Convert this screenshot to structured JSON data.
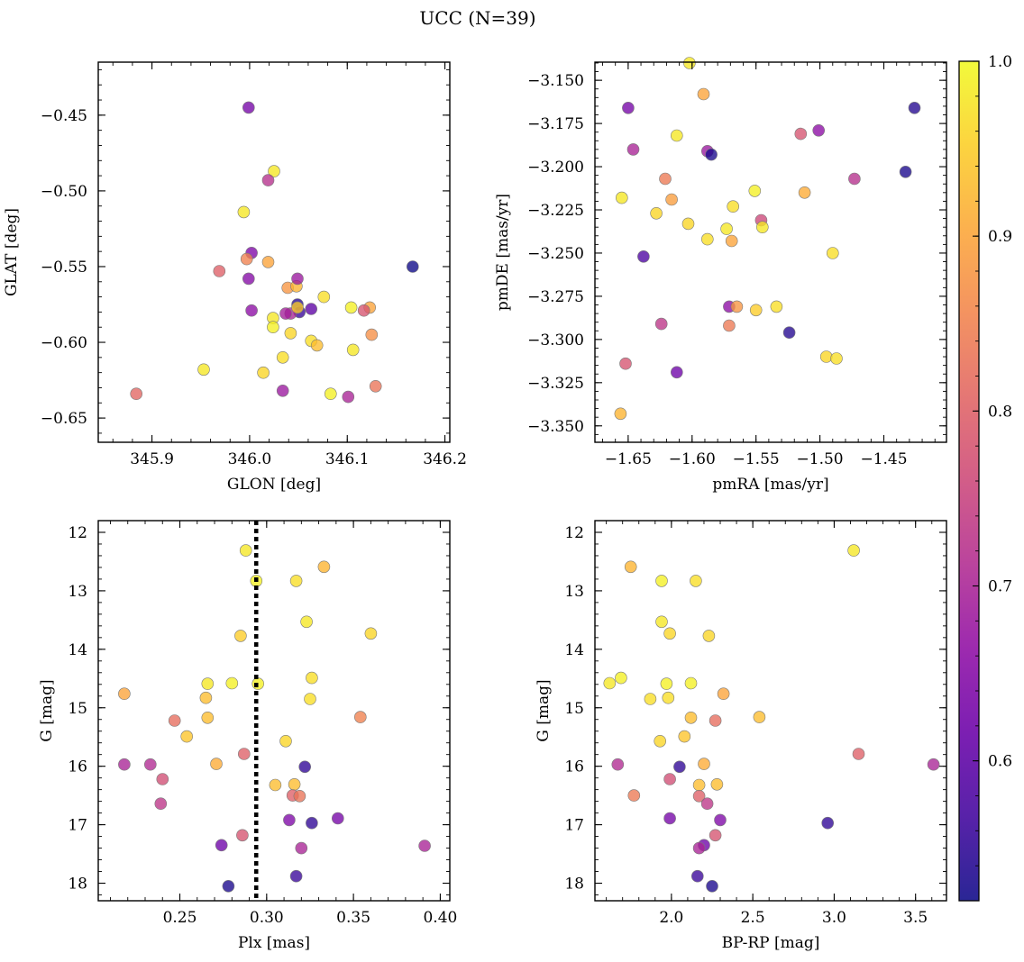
{
  "figure": {
    "title": "UCC (N=39)"
  },
  "colors": {
    "colormap": [
      "#0d0887",
      "#41049d",
      "#6a00a8",
      "#8f0da4",
      "#b12a90",
      "#cc4778",
      "#e16462",
      "#f2844b",
      "#fca636",
      "#fcce25",
      "#f0f921"
    ],
    "marker_alpha": 0.78,
    "marker_edge": "#7a7a7a",
    "vline": "#000000"
  },
  "chart_data": [
    {
      "id": "glon-glat",
      "type": "scatter",
      "xlabel": "GLON [deg]",
      "ylabel": "GLAT [deg]",
      "xlim": [
        345.845,
        346.205
      ],
      "ylim": [
        -0.666,
        -0.415
      ],
      "y_inverted": false,
      "xticks": [
        345.9,
        346.0,
        346.1,
        346.2
      ],
      "xtick_labels": [
        "345.9",
        "346.0",
        "346.1",
        "346.2"
      ],
      "yticks": [
        -0.45,
        -0.5,
        -0.55,
        -0.6,
        -0.65
      ],
      "ytick_labels": [
        "−0.45",
        "−0.50",
        "−0.55",
        "−0.60",
        "−0.65"
      ],
      "x": [
        345.999,
        346.025,
        346.019,
        345.994,
        346.002,
        346.167,
        345.969,
        345.997,
        346.019,
        345.999,
        346.039,
        346.048,
        346.049,
        346.002,
        346.049,
        346.051,
        346.063,
        346.076,
        346.104,
        346.123,
        346.117,
        346.042,
        346.049,
        346.037,
        346.024,
        346.024,
        346.042,
        346.063,
        346.069,
        346.106,
        346.125,
        345.953,
        346.014,
        346.034,
        346.083,
        346.034,
        346.101,
        346.129,
        345.884
      ],
      "y": [
        -0.445,
        -0.487,
        -0.493,
        -0.514,
        -0.541,
        -0.55,
        -0.553,
        -0.545,
        -0.547,
        -0.558,
        -0.564,
        -0.563,
        -0.558,
        -0.579,
        -0.575,
        -0.58,
        -0.578,
        -0.57,
        -0.577,
        -0.577,
        -0.579,
        -0.581,
        -0.577,
        -0.581,
        -0.584,
        -0.59,
        -0.594,
        -0.599,
        -0.602,
        -0.605,
        -0.595,
        -0.618,
        -0.62,
        -0.61,
        -0.634,
        -0.632,
        -0.636,
        -0.629,
        -0.634
      ],
      "c": [
        0.63,
        0.98,
        0.72,
        0.98,
        0.64,
        0.52,
        0.8,
        0.85,
        0.9,
        0.65,
        0.88,
        0.92,
        0.68,
        0.66,
        0.54,
        0.56,
        0.6,
        0.97,
        0.99,
        0.9,
        0.78,
        0.7,
        0.95,
        0.69,
        0.98,
        0.99,
        0.96,
        0.97,
        0.93,
        0.98,
        0.87,
        0.98,
        0.96,
        0.97,
        0.99,
        0.68,
        0.7,
        0.83,
        0.81
      ]
    },
    {
      "id": "pm",
      "type": "scatter",
      "xlabel": "pmRA [mas/yr]",
      "ylabel": "pmDE [mas/yr]",
      "xlim": [
        -1.676,
        -1.401
      ],
      "ylim": [
        -3.3595,
        -3.1395
      ],
      "y_inverted": false,
      "xticks": [
        -1.65,
        -1.6,
        -1.55,
        -1.5,
        -1.45
      ],
      "xtick_labels": [
        "−1.65",
        "−1.60",
        "−1.55",
        "−1.50",
        "−1.45"
      ],
      "yticks": [
        -3.15,
        -3.175,
        -3.2,
        -3.225,
        -3.25,
        -3.275,
        -3.3,
        -3.325,
        -3.35
      ],
      "ytick_labels": [
        "−3.150",
        "−3.175",
        "−3.200",
        "−3.225",
        "−3.250",
        "−3.275",
        "−3.300",
        "−3.325",
        "−3.350"
      ],
      "x": [
        -1.591,
        -1.65,
        -1.646,
        -1.612,
        -1.588,
        -1.585,
        -1.515,
        -1.501,
        -1.426,
        -1.433,
        -1.473,
        -1.621,
        -1.655,
        -1.616,
        -1.628,
        -1.603,
        -1.568,
        -1.551,
        -1.512,
        -1.573,
        -1.588,
        -1.569,
        -1.546,
        -1.545,
        -1.49,
        -1.638,
        -1.624,
        -1.571,
        -1.565,
        -1.55,
        -1.534,
        -1.571,
        -1.524,
        -1.652,
        -1.612,
        -1.495,
        -1.487,
        -1.656,
        -1.602
      ],
      "y": [
        -3.158,
        -3.166,
        -3.19,
        -3.182,
        -3.191,
        -3.193,
        -3.181,
        -3.179,
        -3.166,
        -3.203,
        -3.207,
        -3.207,
        -3.218,
        -3.219,
        -3.227,
        -3.233,
        -3.223,
        -3.214,
        -3.215,
        -3.236,
        -3.242,
        -3.243,
        -3.231,
        -3.235,
        -3.25,
        -3.252,
        -3.291,
        -3.281,
        -3.281,
        -3.283,
        -3.281,
        -3.292,
        -3.296,
        -3.314,
        -3.319,
        -3.31,
        -3.311,
        -3.343,
        -3.14
      ],
      "c": [
        0.9,
        0.63,
        0.7,
        0.98,
        0.68,
        0.53,
        0.78,
        0.66,
        0.54,
        0.53,
        0.72,
        0.84,
        0.98,
        0.89,
        0.96,
        0.96,
        0.97,
        0.99,
        0.91,
        0.98,
        0.97,
        0.9,
        0.76,
        0.98,
        0.97,
        0.58,
        0.73,
        0.66,
        0.88,
        0.95,
        0.97,
        0.84,
        0.54,
        0.78,
        0.62,
        0.96,
        0.97,
        0.92,
        0.98
      ]
    },
    {
      "id": "plx-g",
      "type": "scatter",
      "xlabel": "Plx [mas]",
      "ylabel": "G [mag]",
      "xlim": [
        0.203,
        0.4055
      ],
      "ylim": [
        18.3,
        11.8
      ],
      "y_inverted": true,
      "xticks": [
        0.25,
        0.3,
        0.35,
        0.4
      ],
      "xtick_labels": [
        "0.25",
        "0.30",
        "0.35",
        "0.40"
      ],
      "yticks": [
        12,
        13,
        14,
        15,
        16,
        17,
        18
      ],
      "ytick_labels": [
        "12",
        "13",
        "14",
        "15",
        "16",
        "17",
        "18"
      ],
      "vline_x": 0.294,
      "x": [
        0.288,
        0.333,
        0.294,
        0.317,
        0.323,
        0.285,
        0.36,
        0.266,
        0.28,
        0.295,
        0.326,
        0.218,
        0.265,
        0.325,
        0.266,
        0.247,
        0.354,
        0.254,
        0.311,
        0.218,
        0.233,
        0.271,
        0.287,
        0.322,
        0.24,
        0.305,
        0.316,
        0.315,
        0.319,
        0.239,
        0.341,
        0.326,
        0.313,
        0.274,
        0.286,
        0.32,
        0.391,
        0.278,
        0.317
      ],
      "y": [
        12.31,
        12.59,
        12.83,
        12.83,
        13.53,
        13.77,
        13.73,
        14.59,
        14.58,
        14.59,
        14.49,
        14.76,
        14.83,
        14.85,
        15.17,
        15.22,
        15.16,
        15.49,
        15.57,
        15.97,
        15.97,
        15.96,
        15.79,
        16.01,
        16.22,
        16.32,
        16.31,
        16.5,
        16.51,
        16.64,
        16.89,
        16.97,
        16.92,
        17.35,
        17.18,
        17.4,
        17.36,
        18.05,
        17.88
      ],
      "c": [
        0.98,
        0.92,
        0.99,
        0.97,
        0.98,
        0.95,
        0.96,
        0.98,
        0.99,
        0.99,
        0.97,
        0.9,
        0.93,
        0.97,
        0.93,
        0.82,
        0.85,
        0.94,
        0.96,
        0.7,
        0.71,
        0.91,
        0.8,
        0.55,
        0.77,
        0.93,
        0.93,
        0.8,
        0.83,
        0.73,
        0.63,
        0.55,
        0.64,
        0.62,
        0.78,
        0.7,
        0.7,
        0.53,
        0.56
      ]
    },
    {
      "id": "bprp-g",
      "type": "scatter",
      "xlabel": "BP-RP [mag]",
      "ylabel": "G [mag]",
      "xlim": [
        1.53,
        3.69
      ],
      "ylim": [
        18.3,
        11.8
      ],
      "y_inverted": true,
      "xticks": [
        2.0,
        2.5,
        3.0,
        3.5
      ],
      "xtick_labels": [
        "2.0",
        "2.5",
        "3.0",
        "3.5"
      ],
      "yticks": [
        12,
        13,
        14,
        15,
        16,
        17,
        18
      ],
      "ytick_labels": [
        "12",
        "13",
        "14",
        "15",
        "16",
        "17",
        "18"
      ],
      "x": [
        3.12,
        1.75,
        1.94,
        2.15,
        1.94,
        2.23,
        1.99,
        1.62,
        1.69,
        1.97,
        2.12,
        2.32,
        1.87,
        1.98,
        2.12,
        2.27,
        2.54,
        2.08,
        1.93,
        3.61,
        1.67,
        2.2,
        3.15,
        2.05,
        1.99,
        2.17,
        2.28,
        1.77,
        2.17,
        2.22,
        1.99,
        2.96,
        2.3,
        2.2,
        2.27,
        2.17,
        2.16,
        2.25
      ],
      "y": [
        12.31,
        12.59,
        12.83,
        12.83,
        13.53,
        13.77,
        13.73,
        14.58,
        14.49,
        14.59,
        14.58,
        14.76,
        14.85,
        14.83,
        15.17,
        15.22,
        15.16,
        15.49,
        15.57,
        15.97,
        15.97,
        15.96,
        15.79,
        16.01,
        16.22,
        16.32,
        16.31,
        16.5,
        16.51,
        16.64,
        16.89,
        16.97,
        16.92,
        17.35,
        17.18,
        17.4,
        17.88,
        18.05
      ],
      "c": [
        0.98,
        0.92,
        0.99,
        0.97,
        0.98,
        0.96,
        0.96,
        0.98,
        0.99,
        0.99,
        0.99,
        0.9,
        0.97,
        0.97,
        0.93,
        0.82,
        0.93,
        0.94,
        0.96,
        0.7,
        0.71,
        0.91,
        0.8,
        0.55,
        0.77,
        0.93,
        0.93,
        0.84,
        0.8,
        0.73,
        0.63,
        0.55,
        0.64,
        0.62,
        0.78,
        0.7,
        0.56,
        0.53
      ]
    }
  ],
  "colorbar": {
    "min": 0.52,
    "max": 1.0,
    "ticks": [
      0.6,
      0.7,
      0.8,
      0.9,
      1.0
    ],
    "tick_labels": [
      "0.6",
      "0.7",
      "0.8",
      "0.9",
      "1.0"
    ]
  }
}
